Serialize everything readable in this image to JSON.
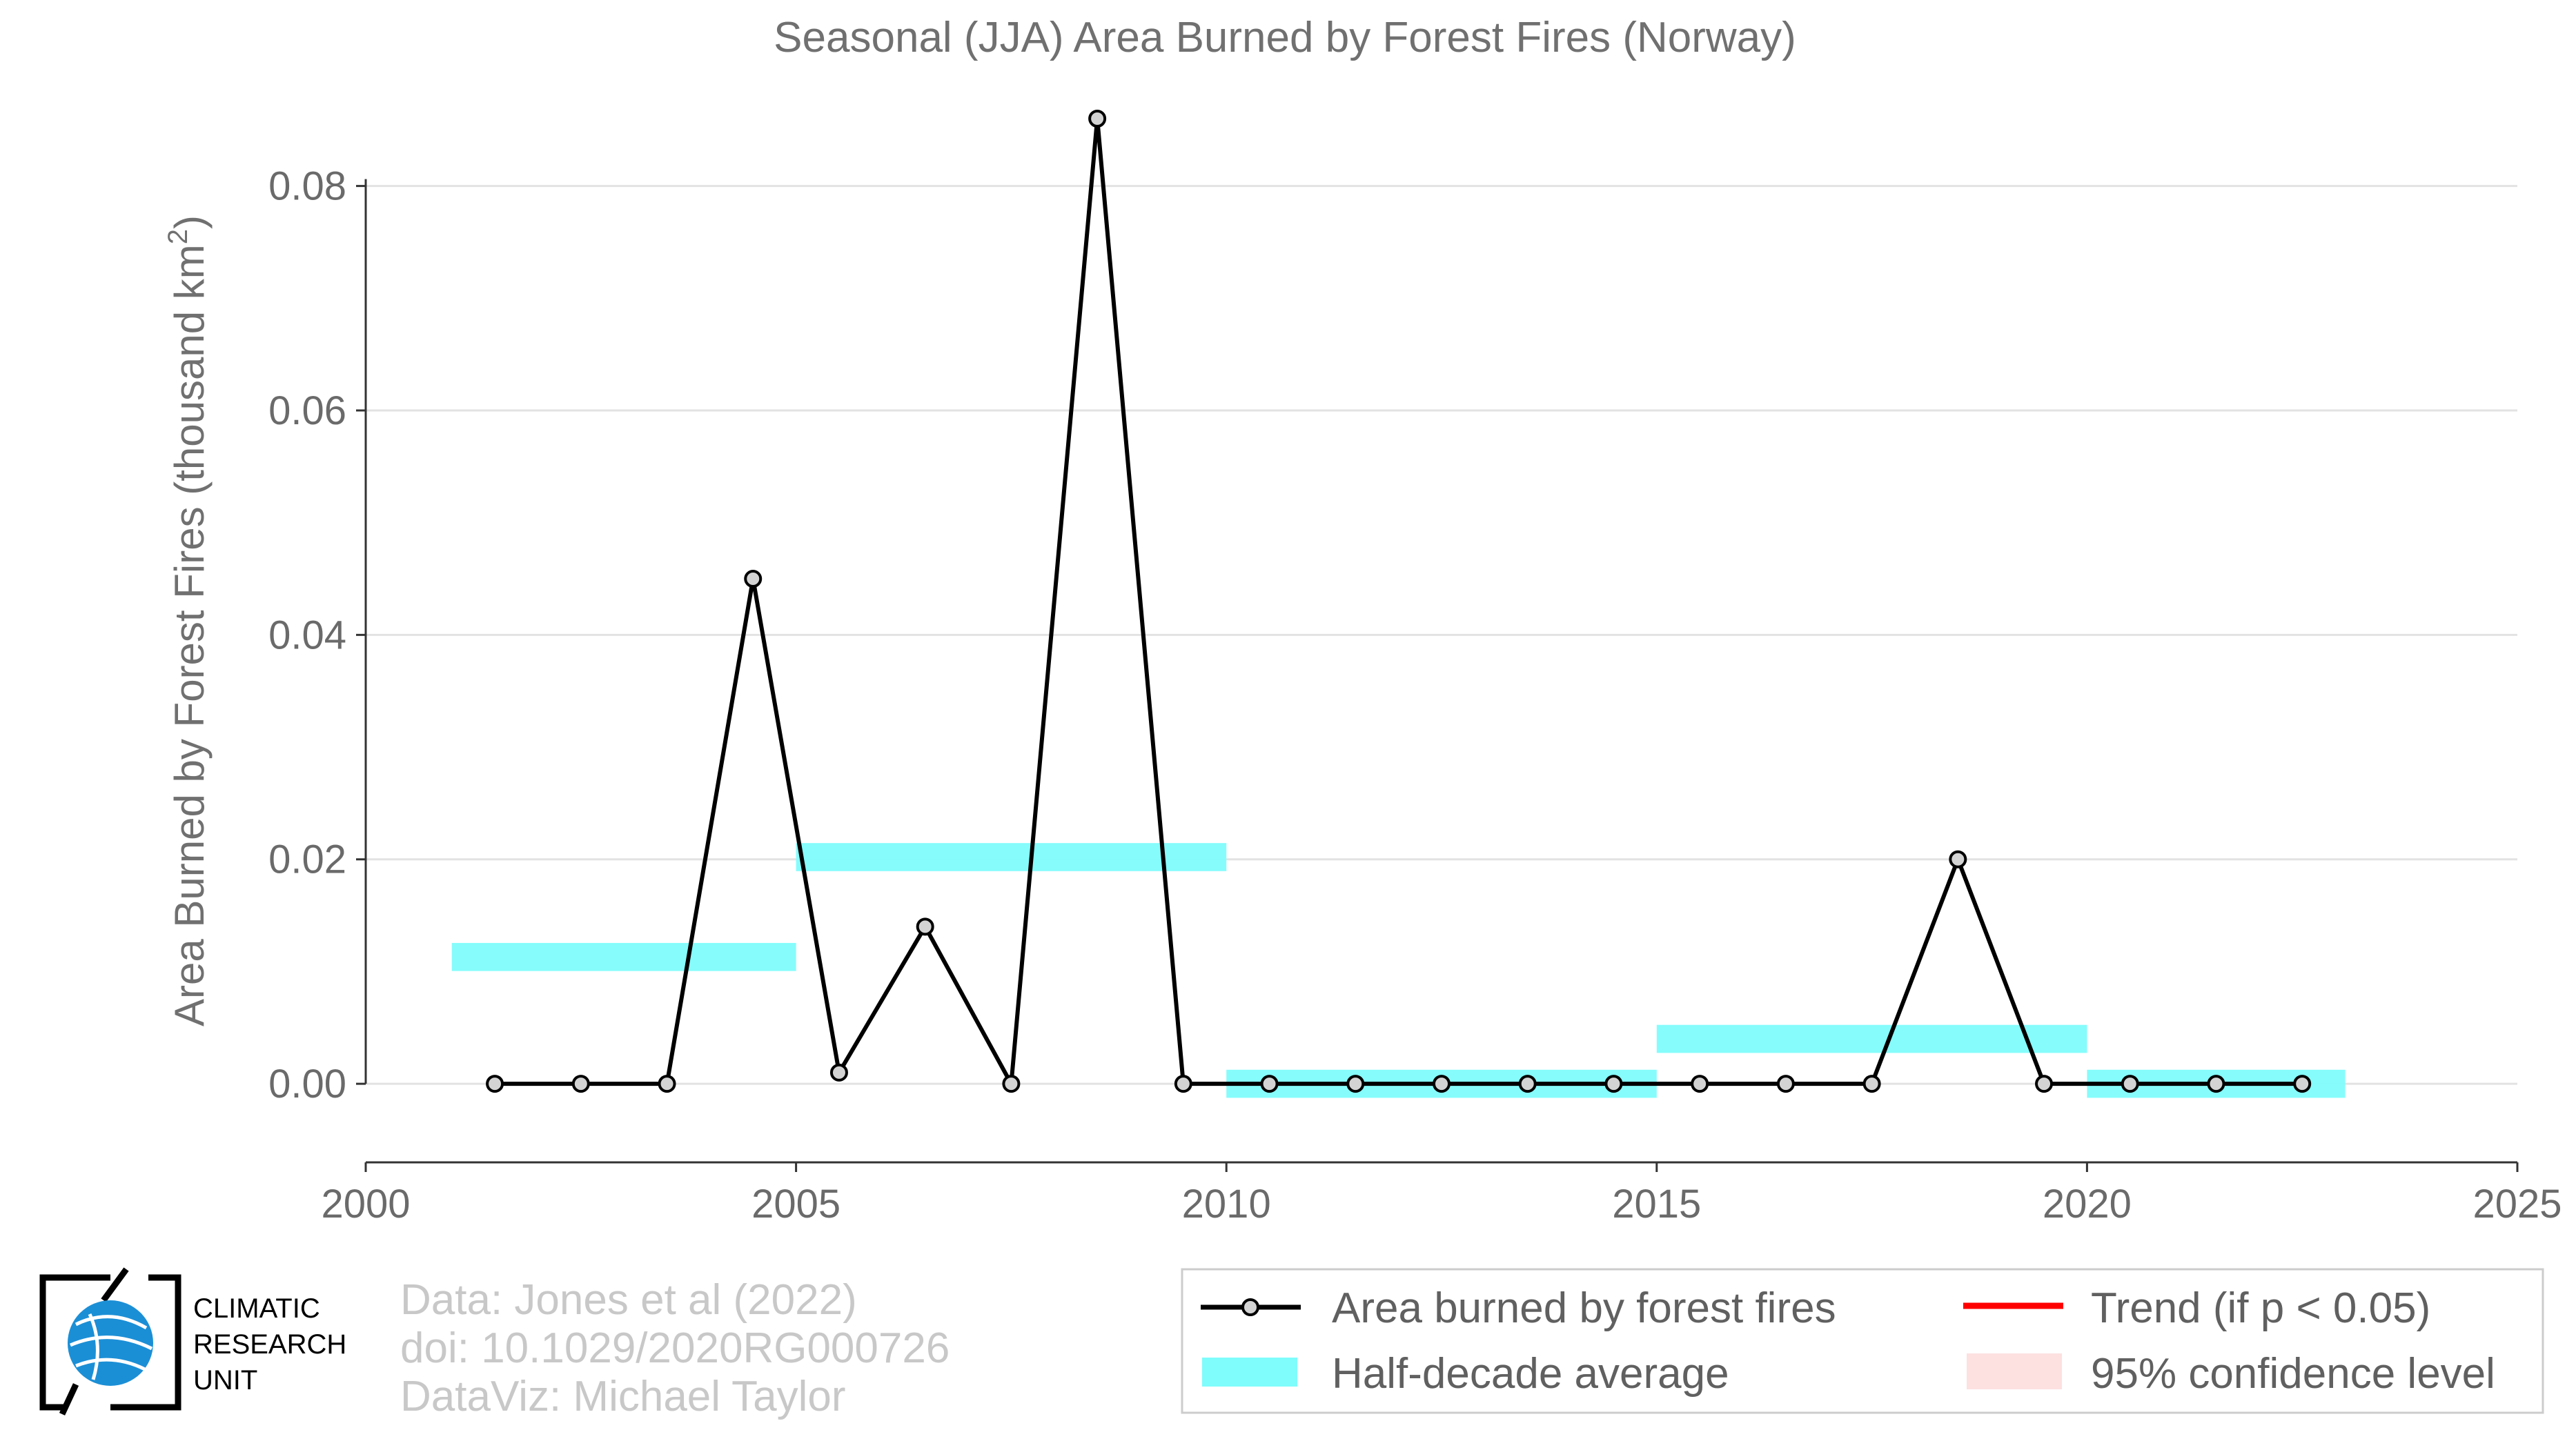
{
  "chart_data": {
    "type": "line",
    "title": "Seasonal (JJA) Area Burned by Forest Fires (Norway)",
    "ylabel": "Area Burned by Forest Fires (thousand km²)",
    "ylabel_main": "Area Burned by Forest Fires (thousand km",
    "ylabel_sup": "2",
    "ylabel_close": ")",
    "xlabel": "",
    "xlim": [
      2000,
      2025
    ],
    "ylim": [
      -0.007,
      0.086
    ],
    "xticks": [
      2000,
      2005,
      2010,
      2015,
      2020,
      2025
    ],
    "yticks": [
      0.0,
      0.02,
      0.04,
      0.06,
      0.08
    ],
    "ytick_labels": [
      "0.00",
      "0.02",
      "0.04",
      "0.06",
      "0.08"
    ],
    "grid": true,
    "series": [
      {
        "name": "Area burned by forest fires",
        "color": "#000000",
        "x": [
          2001.5,
          2002.5,
          2003.5,
          2004.5,
          2005.5,
          2006.5,
          2007.5,
          2008.5,
          2009.5,
          2010.5,
          2011.5,
          2012.5,
          2013.5,
          2014.5,
          2015.5,
          2016.5,
          2017.5,
          2018.5,
          2019.5,
          2020.5,
          2021.5,
          2022.5
        ],
        "y": [
          0.0,
          0.0,
          0.0,
          0.045,
          0.001,
          0.014,
          0.0,
          0.086,
          0.0,
          0.0,
          0.0,
          0.0,
          0.0,
          0.0,
          0.0,
          0.0,
          0.0,
          0.02,
          0.0,
          0.0,
          0.0,
          0.0
        ]
      }
    ],
    "half_decade_average": {
      "name": "Half-decade average",
      "color": "#7ffcfc",
      "segments": [
        {
          "x0": 2001,
          "x1": 2005,
          "y": 0.0113
        },
        {
          "x0": 2005,
          "x1": 2010,
          "y": 0.0202
        },
        {
          "x0": 2010,
          "x1": 2015,
          "y": 0.0
        },
        {
          "x0": 2015,
          "x1": 2020,
          "y": 0.004
        },
        {
          "x0": 2020,
          "x1": 2023,
          "y": 0.0
        }
      ]
    },
    "legend": {
      "placement": "bottom-right",
      "items": [
        {
          "label": "Area burned by forest fires",
          "type": "line-marker",
          "color": "#000000"
        },
        {
          "label": "Trend (if p < 0.05)",
          "type": "line",
          "color": "#ff0000"
        },
        {
          "label": "Half-decade average",
          "type": "band",
          "color": "#7ffcfc"
        },
        {
          "label": "95% confidence level",
          "type": "band",
          "color": "#fde0e0"
        }
      ]
    }
  },
  "credits": {
    "line1": "Data: Jones et al (2022)",
    "line2": "doi: 10.1029/2020RG000726",
    "line3": "DataViz: Michael Taylor"
  },
  "logo": {
    "line1": "CLIMATIC",
    "line2": "RESEARCH",
    "line3": "UNIT"
  }
}
